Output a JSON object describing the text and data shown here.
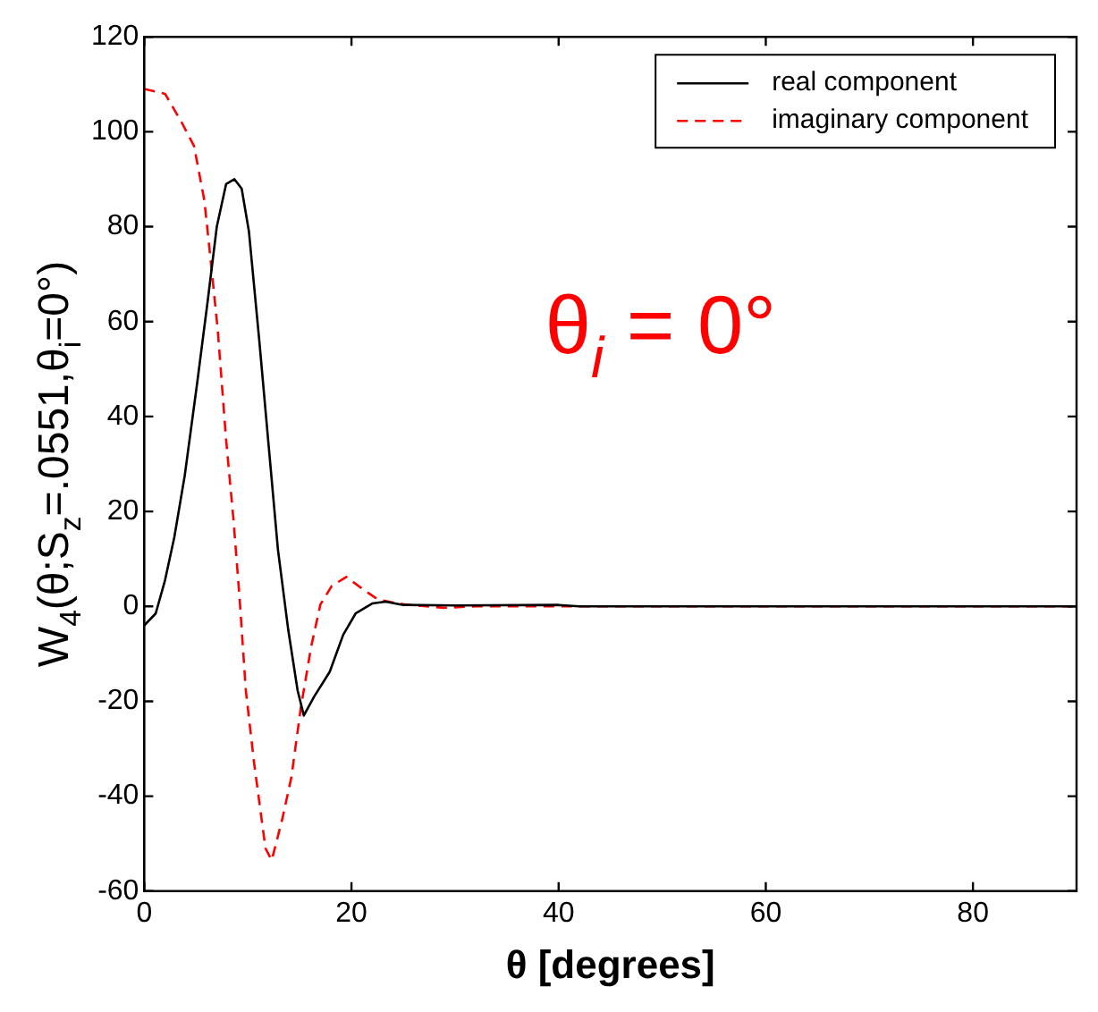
{
  "chart_data": {
    "type": "line",
    "xlabel": "θ [degrees]",
    "ylabel": "W$_{4}$(θ;S$_{z}$=.0551,θ$_{i}$=0°)",
    "annotations": [
      "θ$_{i}$ = 0°"
    ],
    "xlim": [
      0,
      90
    ],
    "xticks": [
      0,
      20,
      40,
      60,
      80
    ],
    "ylim": [
      -60,
      120
    ],
    "yticks": [
      -60,
      -40,
      -20,
      0,
      20,
      40,
      60,
      80,
      100,
      120
    ],
    "grid": false,
    "legend": "top right",
    "marker": "none",
    "series": [
      {
        "name": "real component",
        "color": "#000000",
        "line_style": "solid",
        "x": [
          0,
          1.1,
          2,
          2.9,
          3.9,
          5.1,
          6.1,
          7,
          7.9,
          8.7,
          9.4,
          10.1,
          11.1,
          12,
          12.9,
          13.9,
          14.8,
          15.4,
          16.4,
          17.9,
          19.2,
          20.4,
          22,
          23.3,
          25,
          30,
          40,
          42,
          90
        ],
        "values": [
          -4,
          -1.5,
          5.5,
          14.6,
          27.5,
          47,
          64,
          80,
          89,
          90,
          88,
          79,
          56,
          34,
          12,
          -5,
          -17.7,
          -23,
          -19,
          -13.8,
          -6,
          -1.5,
          0.6,
          1,
          0.3,
          0.2,
          0.3,
          0,
          0
        ]
      },
      {
        "name": "imaginary component",
        "color": "#ff0000",
        "line_style": "dashed",
        "x": [
          0,
          2,
          3.6,
          4.8,
          5.8,
          6.5,
          7.1,
          7.9,
          8.6,
          9.2,
          9.8,
          10.6,
          11.7,
          12.3,
          13.3,
          14.2,
          15.1,
          16.1,
          17,
          18.1,
          19.5,
          21.1,
          22.6,
          25.1,
          28.9,
          32,
          90
        ],
        "values": [
          109,
          108,
          102,
          97,
          85.5,
          71,
          58,
          35,
          18.5,
          1.7,
          -17.7,
          -33,
          -51,
          -53.5,
          -45,
          -36,
          -21.5,
          -8.6,
          0.4,
          4.3,
          6.2,
          3.6,
          1.4,
          0.4,
          -0.3,
          0,
          0
        ]
      }
    ]
  }
}
